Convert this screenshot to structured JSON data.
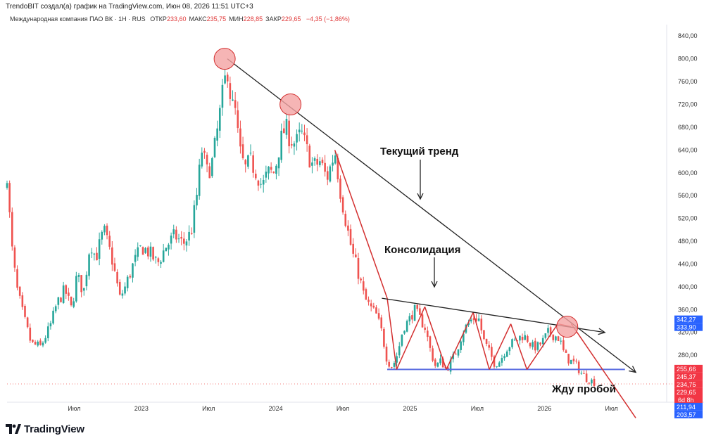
{
  "header": {
    "credit": "TrendoBIT создал(а) график на TradingView.com, Июн 08, 2026 11:51 UTC+3",
    "symbol": "Международная компания ПАО ВК · 1Н · RUS",
    "ohlc": [
      {
        "label": "ОТКР",
        "value": "233,60"
      },
      {
        "label": "МАКС",
        "value": "235,75"
      },
      {
        "label": "МИН",
        "value": "228,85"
      },
      {
        "label": "ЗАКР",
        "value": "229,65"
      }
    ],
    "change": "−4,35 (−1,86%)"
  },
  "colors": {
    "up": "#26a69a",
    "down": "#ef5350",
    "trend_line": "#222222",
    "red_line": "#d32f2f",
    "support": "#5b6ee1",
    "circle_fill": "#f4a3a3",
    "circle_stroke": "#d32f2f"
  },
  "chart_data": {
    "type": "candlestick",
    "y_axis": {
      "min": 200,
      "max": 860,
      "ticks": [
        "840,00",
        "800,00",
        "760,00",
        "720,00",
        "680,00",
        "640,00",
        "600,00",
        "560,00",
        "520,00",
        "480,00",
        "440,00",
        "400,00",
        "360,00",
        "320,00",
        "280,00"
      ]
    },
    "x_axis": {
      "labels": [
        "Июл",
        "2023",
        "Июл",
        "2024",
        "Июл",
        "2025",
        "Июл",
        "2026",
        "Июл"
      ],
      "positions": [
        2022.5,
        2023.0,
        2023.5,
        2024.0,
        2024.5,
        2025.0,
        2025.5,
        2026.0,
        2026.5
      ],
      "start": 2022.0,
      "end": 2026.9
    },
    "price_tags": [
      {
        "value": 342.27,
        "label": "342,27",
        "color": "#2962ff"
      },
      {
        "value": 333.9,
        "label": "333,90",
        "color": "#2962ff"
      },
      {
        "value": 255.66,
        "label": "255,66",
        "color": "#f23645"
      },
      {
        "value": 245.37,
        "label": "245,37",
        "color": "#f23645"
      },
      {
        "value": 234.75,
        "label": "234,75",
        "color": "#f23645"
      },
      {
        "value": 229.65,
        "label": "229,65",
        "color": "#f23645",
        "sub": "6d 8h"
      },
      {
        "value": 211.94,
        "label": "211,94",
        "color": "#2962ff"
      },
      {
        "value": 203.57,
        "label": "203,57",
        "color": "#2962ff"
      }
    ],
    "close_path": [
      [
        2022.0,
        600
      ],
      [
        2022.03,
        480
      ],
      [
        2022.07,
        400
      ],
      [
        2022.12,
        350
      ],
      [
        2022.18,
        300
      ],
      [
        2022.25,
        295
      ],
      [
        2022.32,
        330
      ],
      [
        2022.37,
        370
      ],
      [
        2022.43,
        395
      ],
      [
        2022.48,
        360
      ],
      [
        2022.52,
        420
      ],
      [
        2022.57,
        390
      ],
      [
        2022.62,
        480
      ],
      [
        2022.66,
        450
      ],
      [
        2022.72,
        500
      ],
      [
        2022.78,
        450
      ],
      [
        2022.84,
        380
      ],
      [
        2022.88,
        400
      ],
      [
        2022.94,
        440
      ],
      [
        2023.0,
        470
      ],
      [
        2023.06,
        460
      ],
      [
        2023.12,
        440
      ],
      [
        2023.18,
        470
      ],
      [
        2023.25,
        490
      ],
      [
        2023.31,
        475
      ],
      [
        2023.37,
        495
      ],
      [
        2023.41,
        555
      ],
      [
        2023.45,
        640
      ],
      [
        2023.49,
        600
      ],
      [
        2023.53,
        620
      ],
      [
        2023.57,
        680
      ],
      [
        2023.61,
        745
      ],
      [
        2023.64,
        785
      ],
      [
        2023.67,
        720
      ],
      [
        2023.7,
        705
      ],
      [
        2023.73,
        640
      ],
      [
        2023.77,
        605
      ],
      [
        2023.81,
        620
      ],
      [
        2023.86,
        600
      ],
      [
        2023.9,
        575
      ],
      [
        2023.94,
        600
      ],
      [
        2023.99,
        600
      ],
      [
        2024.03,
        650
      ],
      [
        2024.07,
        680
      ],
      [
        2024.11,
        660
      ],
      [
        2024.15,
        650
      ],
      [
        2024.19,
        670
      ],
      [
        2024.23,
        640
      ],
      [
        2024.28,
        610
      ],
      [
        2024.33,
        620
      ],
      [
        2024.38,
        590
      ],
      [
        2024.42,
        620
      ],
      [
        2024.44,
        640
      ],
      [
        2024.48,
        570
      ],
      [
        2024.53,
        505
      ],
      [
        2024.57,
        460
      ],
      [
        2024.62,
        420
      ],
      [
        2024.66,
        380
      ],
      [
        2024.7,
        365
      ],
      [
        2024.75,
        350
      ],
      [
        2024.79,
        320
      ],
      [
        2024.83,
        270
      ],
      [
        2024.87,
        260
      ],
      [
        2024.91,
        285
      ],
      [
        2024.95,
        330
      ],
      [
        2024.99,
        340
      ],
      [
        2025.03,
        360
      ],
      [
        2025.07,
        345
      ],
      [
        2025.11,
        330
      ],
      [
        2025.15,
        290
      ],
      [
        2025.19,
        260
      ],
      [
        2025.23,
        270
      ],
      [
        2025.27,
        255
      ],
      [
        2025.31,
        270
      ],
      [
        2025.35,
        290
      ],
      [
        2025.39,
        320
      ],
      [
        2025.43,
        335
      ],
      [
        2025.47,
        345
      ],
      [
        2025.51,
        345
      ],
      [
        2025.55,
        305
      ],
      [
        2025.59,
        285
      ],
      [
        2025.63,
        265
      ],
      [
        2025.67,
        270
      ],
      [
        2025.71,
        290
      ],
      [
        2025.75,
        300
      ],
      [
        2025.79,
        305
      ],
      [
        2025.83,
        315
      ],
      [
        2025.87,
        310
      ],
      [
        2025.91,
        295
      ],
      [
        2025.95,
        295
      ],
      [
        2025.99,
        305
      ],
      [
        2026.03,
        320
      ],
      [
        2026.07,
        315
      ],
      [
        2026.11,
        310
      ],
      [
        2026.15,
        280
      ],
      [
        2026.19,
        270
      ],
      [
        2026.23,
        265
      ],
      [
        2026.27,
        250
      ],
      [
        2026.31,
        240
      ],
      [
        2026.35,
        235
      ],
      [
        2026.39,
        230
      ]
    ],
    "annotations": {
      "current_trend_label": "Текущий тренд",
      "consolidation_label": "Консолидация",
      "waiting_label": "Жду пробой",
      "trend_line": [
        [
          2023.64,
          800
        ],
        [
          2026.68,
          250
        ]
      ],
      "consolidation_line": [
        [
          2024.79,
          380
        ],
        [
          2026.45,
          320
        ]
      ],
      "support_level": {
        "value": 255,
        "x_start": 2024.83,
        "x_end": 2026.6
      },
      "red_trend_line": [
        [
          2024.44,
          640
        ],
        [
          2024.83,
          380
        ]
      ],
      "red_break_line": [
        [
          2026.2,
          335
        ],
        [
          2026.68,
          170
        ]
      ],
      "zigzag": [
        [
          2024.83,
          380
        ],
        [
          2024.9,
          255
        ],
        [
          2025.11,
          365
        ],
        [
          2025.27,
          255
        ],
        [
          2025.47,
          355
        ],
        [
          2025.59,
          255
        ],
        [
          2025.75,
          335
        ],
        [
          2025.87,
          255
        ],
        [
          2026.1,
          335
        ],
        [
          2026.2,
          330
        ]
      ],
      "circles": [
        [
          2023.62,
          800
        ],
        [
          2024.11,
          720
        ],
        [
          2026.17,
          330
        ]
      ]
    }
  }
}
